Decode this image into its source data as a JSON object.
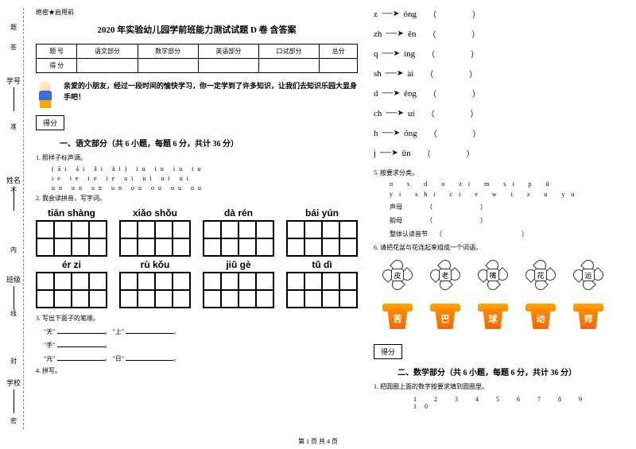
{
  "sidebar": {
    "labels": [
      "学号",
      "姓名",
      "班级",
      "学校"
    ],
    "marks": [
      "题",
      "答",
      "准",
      "不",
      "内",
      "线",
      "封",
      "密"
    ]
  },
  "header": {
    "secret": "绝密★启用前"
  },
  "title": "2020 年实验幼儿园学前班能力测试试题 D 卷 含答案",
  "scoreTable": {
    "headers": [
      "题    号",
      "语文部分",
      "数学部分",
      "英语部分",
      "口试部分",
      "总分"
    ],
    "row2": "得    分"
  },
  "intro": "亲爱的小朋友，经过一段时间的愉快学习，你一定学到了许多知识，让我们去知识乐园大显身手吧！",
  "scoreLabel": "得分",
  "section1": {
    "title": "一、语文部分（共 6 小题，每题 6 分，共计 36 分）",
    "q1": "1. 照样子标声调。",
    "q1_line1": "(āi   ái   ǎi  ài)        iu   iu   iu   iu",
    "q1_line2": "ie   ie   ie   ie        ui   ui   ui   ui",
    "q1_line3": "un   un   un   un        ou   ou   ou   ou",
    "q2": "2. 我会读拼音，写字词。",
    "pinyin": [
      "tiān shàng",
      "xiǎo shǒu",
      "dà  rén",
      "bái  yún",
      "ér  zi",
      "rù  kǒu",
      "jiǔ  gè",
      "tǔ  dì"
    ],
    "q3": "3. 写出下面子的笔顺。",
    "strokes": [
      [
        "\"天\"",
        "\"上\""
      ],
      [
        "\"手\"",
        ""
      ],
      [
        "\"元\"",
        "\"日\""
      ]
    ],
    "q4": "4. 拼写。"
  },
  "combine": [
    [
      "z",
      "ōng"
    ],
    [
      "zh",
      "ěn"
    ],
    [
      "q",
      "íng"
    ],
    [
      "sh",
      "àì"
    ],
    [
      "d",
      "ēng"
    ],
    [
      "ch",
      "uí"
    ],
    [
      "h",
      "óng"
    ],
    [
      "j",
      "ūn"
    ]
  ],
  "q5": {
    "title": "5. 按要求分类。",
    "line1": "ɑ   s   d   o   zi   m   si   p   ü",
    "line2": "yi  shi  ci   e   w   i   z   u   yu",
    "labels": [
      "声母",
      "韵母",
      "整体认读音节"
    ]
  },
  "q6": {
    "title": "6. 请把花盆与花连起来组成一个词语。",
    "flowers": [
      "皮",
      "老",
      "嘴",
      "花",
      "运"
    ],
    "pots": [
      "苦",
      "巴",
      "球",
      "动",
      "师"
    ]
  },
  "section2": {
    "title": "二、数学部分（共 6 小题，每题 6 分，共计 36 分）",
    "q1": "1. 把圆圈上面的数字按要求填到圆圈里。",
    "numbers": "1   2   3   4   5   6   7   8   9   10"
  },
  "footer": "第 1 页 共 4 页"
}
